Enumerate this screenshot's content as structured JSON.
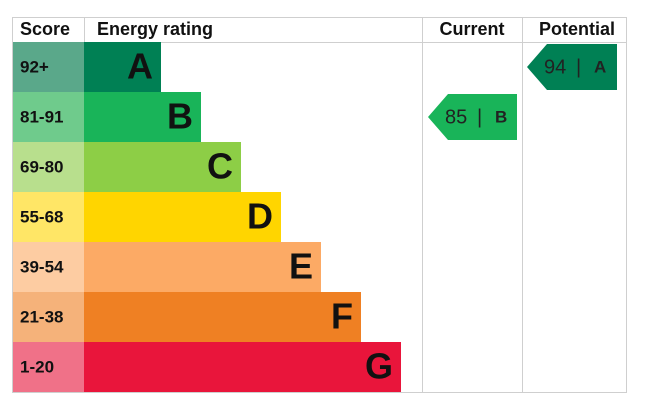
{
  "header": {
    "score": "Score",
    "rating": "Energy rating",
    "current": "Current",
    "potential": "Potential"
  },
  "rows": [
    {
      "score": "92+",
      "band": "A",
      "color": "#008054",
      "score_color": "#5aa88a"
    },
    {
      "score": "81-91",
      "band": "B",
      "color": "#19b459",
      "score_color": "#6fcb8c"
    },
    {
      "score": "69-80",
      "band": "C",
      "color": "#8dce46",
      "score_color": "#b8df8d"
    },
    {
      "score": "55-68",
      "band": "D",
      "color": "#ffd500",
      "score_color": "#ffe666"
    },
    {
      "score": "39-54",
      "band": "E",
      "color": "#fcaa65",
      "score_color": "#fdcca2"
    },
    {
      "score": "21-38",
      "band": "F",
      "color": "#ef8023",
      "score_color": "#f5b27a"
    },
    {
      "score": "1-20",
      "band": "G",
      "color": "#e9153b",
      "score_color": "#f07188"
    }
  ],
  "separator": "|",
  "current": {
    "value": 85,
    "band": "B",
    "color": "#19b459"
  },
  "potential": {
    "value": 94,
    "band": "A",
    "color": "#008054"
  }
}
